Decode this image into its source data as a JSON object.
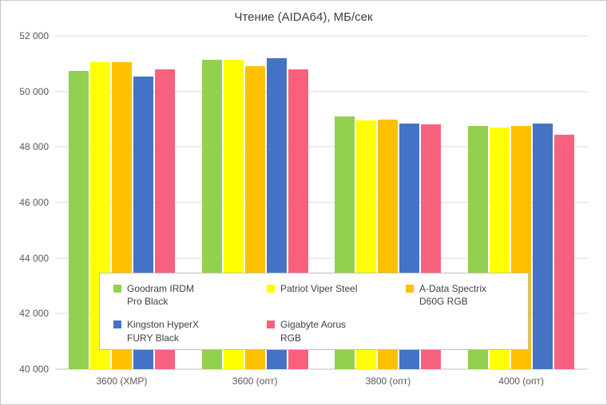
{
  "title": "Чтение (AIDA64), МБ/сек",
  "chart_data": {
    "type": "bar",
    "title": "Чтение (AIDA64), МБ/сек",
    "categories": [
      "3600 (XMP)",
      "3600 (опт)",
      "3800 (опт)",
      "4000 (опт)"
    ],
    "series": [
      {
        "name": "Goodram IRDM Pro Black",
        "color": "#92D050",
        "values": [
          50750,
          51150,
          49100,
          48750
        ]
      },
      {
        "name": "Patriot Viper Steel",
        "color": "#FFFF00",
        "values": [
          51050,
          51150,
          48950,
          48700
        ]
      },
      {
        "name": "A-Data Spectrix D60G RGB",
        "color": "#FFC000",
        "values": [
          51050,
          50900,
          49000,
          48750
        ]
      },
      {
        "name": "Kingston HyperX FURY Black",
        "color": "#4472C4",
        "values": [
          50550,
          51200,
          48850,
          48850
        ]
      },
      {
        "name": "Gigabyte Aorus RGB",
        "color": "#F8617E",
        "values": [
          50800,
          50800,
          48800,
          48450
        ]
      }
    ],
    "ylim": [
      40000,
      52000
    ],
    "ytick_step": 2000,
    "ytick_labels": [
      "40 000",
      "42 000",
      "44 000",
      "46 000",
      "48 000",
      "50 000",
      "52 000"
    ],
    "grid": true,
    "legend_position": "overlay-bottom-center"
  },
  "legend": {
    "items": [
      {
        "lines": [
          "Goodram IRDM",
          "Pro Black"
        ],
        "color": "#92D050"
      },
      {
        "lines": [
          "Patriot Viper Steel"
        ],
        "color": "#FFFF00"
      },
      {
        "lines": [
          "A-Data Spectrix",
          "D60G RGB"
        ],
        "color": "#FFC000"
      },
      {
        "lines": [
          "Kingston HyperX",
          "FURY Black"
        ],
        "color": "#4472C4"
      },
      {
        "lines": [
          "Gigabyte Aorus",
          "RGB"
        ],
        "color": "#F8617E"
      }
    ]
  }
}
